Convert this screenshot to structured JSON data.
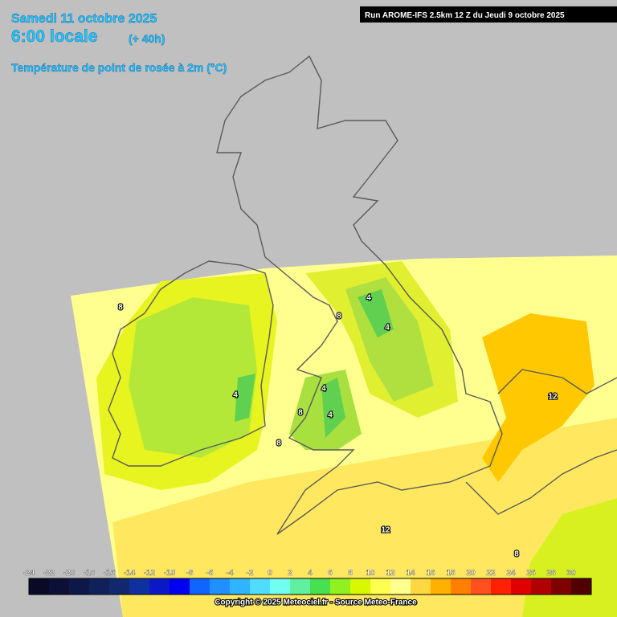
{
  "header": {
    "date": "Samedi 11 octobre 2025",
    "time": "6:00 locale",
    "lead": "(+ 40h)",
    "parameter": "Température de point de rosée à 2m (°C)",
    "run": "Run AROME-IFS 2.5km 12 Z du Jeudi 9 octobre 2025"
  },
  "legend": {
    "ticks": [
      -24,
      -22,
      -20,
      -18,
      -16,
      -14,
      -12,
      -10,
      -8,
      -6,
      -4,
      -2,
      0,
      2,
      4,
      6,
      8,
      10,
      12,
      14,
      16,
      18,
      20,
      22,
      24,
      26,
      28,
      30
    ],
    "colors": [
      "#0a0a26",
      "#0c1036",
      "#0e1848",
      "#10205a",
      "#12286e",
      "#1030a0",
      "#0a18c8",
      "#0000f0",
      "#1064ff",
      "#2090ff",
      "#30b4ff",
      "#50dcff",
      "#70fff0",
      "#60f0a0",
      "#48e050",
      "#90f020",
      "#d8f800",
      "#ffff50",
      "#ffff90",
      "#ffd840",
      "#ffb000",
      "#ff8000",
      "#ff5020",
      "#ff2000",
      "#e00000",
      "#b00000",
      "#800000",
      "#500000"
    ]
  },
  "contour_labels": [
    "8",
    "4",
    "4",
    "8",
    "4",
    "4",
    "4",
    "8",
    "8",
    "12",
    "12",
    "8"
  ],
  "footer": {
    "copyright": "Copyright © 2025 Meteociel.fr - Source Meteo-France"
  }
}
